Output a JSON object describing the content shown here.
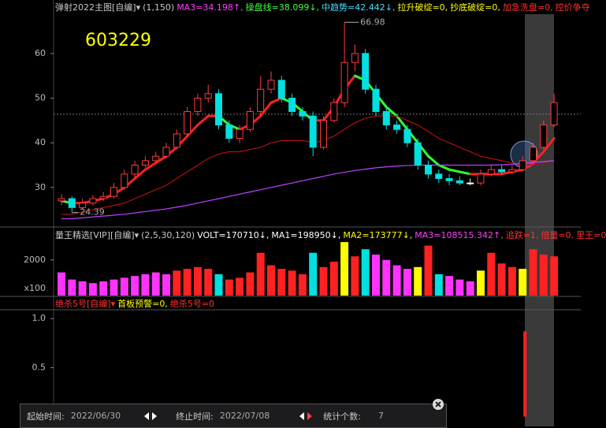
{
  "header": {
    "items": [
      {
        "text": "弹射2022主图[自编]▾",
        "color": "#c8c8c8"
      },
      {
        "text": "(1,150)",
        "color": "#c8c8c8"
      },
      {
        "text": "MA3=34.198↑,",
        "color": "#ff40ff"
      },
      {
        "text": "操盘线=38.099↓,",
        "color": "#40ff40"
      },
      {
        "text": "中趋势=42.442↓,",
        "color": "#40e0ff"
      },
      {
        "text": "拉升破绽=0,",
        "color": "#ffff00"
      },
      {
        "text": "抄底破绽=0,",
        "color": "#ffff00"
      },
      {
        "text": "加急洗盘=0,",
        "color": "#ff3030"
      },
      {
        "text": "控价争夺",
        "color": "#ff3030"
      }
    ]
  },
  "volume_header": {
    "items": [
      {
        "text": "量王精选[VIP][自编]▾",
        "color": "#c8c8c8"
      },
      {
        "text": "(2,5,30,120)",
        "color": "#c8c8c8"
      },
      {
        "text": "VOLT=170710↓,",
        "color": "#ffffff"
      },
      {
        "text": "MA1=198950↓,",
        "color": "#ffffff"
      },
      {
        "text": "MA2=173777↓,",
        "color": "#ffff00"
      },
      {
        "text": "MA3=108515.342↑,",
        "color": "#ff40ff"
      },
      {
        "text": "追跌=1,",
        "color": "#ff3030"
      },
      {
        "text": "倍量=0,",
        "color": "#ff3030"
      },
      {
        "text": "里王=0",
        "color": "#ff3030"
      }
    ]
  },
  "signal_header": {
    "items": [
      {
        "text": "绝杀5号[自编]▾",
        "color": "#ff3030"
      },
      {
        "text": "首板预警=0,",
        "color": "#ffff00"
      },
      {
        "text": "绝杀5号=0",
        "color": "#ff3030"
      }
    ]
  },
  "stats": {
    "start_label": "起始时间:",
    "start": "2022/06/30",
    "end_label": "终止时间:",
    "end": "2022/07/08",
    "count_label": "统计个数:",
    "count": 7
  },
  "chart_data": [
    {
      "type": "candlestick",
      "title": "603229",
      "ylim": [
        21.5,
        68.8
      ],
      "yticks": [
        30,
        40,
        50,
        60
      ],
      "ref_line": 46.4,
      "up_color": "#ff3b3b",
      "down_color": "#00e0e0",
      "open": [
        27,
        27.5,
        25.5,
        26.5,
        27.5,
        28,
        30,
        33,
        35,
        36,
        37,
        39,
        42,
        47,
        50,
        51,
        44,
        41,
        43,
        47,
        52,
        54,
        50,
        47,
        46,
        39,
        45,
        49,
        58,
        60,
        52,
        47,
        44,
        43,
        40,
        35,
        33,
        32,
        31.5,
        31,
        31,
        33,
        34,
        33.5,
        34,
        36,
        39,
        44
      ],
      "close": [
        27.5,
        25.5,
        26.5,
        27.5,
        28,
        30,
        33,
        35,
        36,
        37,
        39,
        42,
        47,
        50,
        51,
        44,
        41,
        43,
        47,
        52,
        54,
        50,
        47,
        46,
        39,
        45,
        49,
        58,
        60,
        52,
        47,
        44,
        43,
        40,
        35,
        33,
        32,
        31.5,
        31,
        31,
        33,
        34,
        33.5,
        34,
        36,
        39,
        44,
        49
      ],
      "high": [
        28.5,
        28,
        27.5,
        28.3,
        29,
        31,
        34,
        36,
        37,
        38,
        40,
        43,
        48,
        51,
        53,
        52,
        45,
        44,
        48,
        55,
        56,
        55,
        51,
        48,
        47,
        46,
        50,
        66.98,
        62,
        61,
        53,
        48,
        45,
        44,
        41,
        36,
        34,
        33,
        32.5,
        32,
        34,
        35,
        35,
        35,
        37,
        40,
        45,
        51
      ],
      "low": [
        26,
        24.39,
        25,
        26,
        27,
        27.5,
        29.5,
        32,
        34.5,
        35.5,
        36.5,
        38.5,
        41.5,
        46,
        49,
        43,
        40,
        40,
        42.5,
        46,
        51,
        49,
        46,
        45,
        37,
        38.5,
        44.5,
        48,
        56,
        51,
        46,
        43,
        42,
        39,
        34,
        32,
        31,
        30.5,
        30.5,
        30.5,
        30.5,
        32.5,
        33,
        33,
        33.5,
        35.5,
        38.5,
        43.5
      ],
      "series": [
        {
          "color": "#ff2020",
          "down_color": "#30ff30",
          "width": 3,
          "values": [
            27,
            26.5,
            26.5,
            27,
            27.5,
            28.5,
            30,
            32,
            34,
            35.5,
            37,
            39,
            41.5,
            44,
            46,
            46,
            44,
            43,
            44,
            46,
            49,
            50,
            49,
            47,
            45,
            45,
            48,
            52,
            55,
            54,
            51,
            48,
            46,
            43,
            40,
            37,
            35,
            34,
            33.5,
            33,
            33,
            33,
            33,
            33.5,
            34,
            35.5,
            38,
            41
          ]
        },
        {
          "color": "#b01010",
          "width": 1.2,
          "values": [
            24,
            24,
            24.5,
            25,
            25.5,
            26,
            26.5,
            27.5,
            28.5,
            29.5,
            30.5,
            32,
            33.5,
            35,
            36.5,
            37.5,
            38,
            38,
            38.5,
            39,
            40,
            40.5,
            40.5,
            40.5,
            40,
            40.5,
            41.5,
            43,
            44.5,
            45.5,
            46,
            46,
            46,
            45,
            44,
            42.5,
            41,
            40,
            39,
            38,
            37,
            36.5,
            36,
            35.5,
            35,
            35,
            35.5,
            36
          ]
        },
        {
          "color": "#c040ff",
          "width": 1.2,
          "values": [
            23,
            23,
            23.2,
            23.4,
            23.6,
            23.8,
            24,
            24.3,
            24.6,
            24.9,
            25.2,
            25.6,
            26,
            26.5,
            27,
            27.5,
            28,
            28.5,
            29,
            29.5,
            30,
            30.5,
            31,
            31.5,
            32,
            32.5,
            33,
            33.4,
            33.8,
            34.1,
            34.4,
            34.6,
            34.8,
            34.9,
            35,
            35,
            35,
            35,
            35,
            35,
            35,
            35,
            35.1,
            35.2,
            35.4,
            35.6,
            35.8,
            36
          ]
        }
      ]
    },
    {
      "type": "bar",
      "ylim": [
        0,
        3050
      ],
      "yticks": [
        2000
      ],
      "unit_label": "x100",
      "values": [
        1300,
        900,
        800,
        700,
        800,
        900,
        1000,
        1100,
        1200,
        1300,
        1200,
        1400,
        1500,
        1600,
        1500,
        1200,
        900,
        1000,
        1300,
        2400,
        1700,
        1500,
        1400,
        1200,
        2400,
        1600,
        1900,
        3000,
        2200,
        2600,
        2300,
        2000,
        1700,
        1500,
        1600,
        2800,
        1200,
        1100,
        900,
        800,
        1400,
        2400,
        1800,
        1600,
        1500,
        2600,
        2300,
        2200
      ],
      "colors": [
        "#ff33ff",
        "#ff33ff",
        "#ff33ff",
        "#ff33ff",
        "#ff33ff",
        "#ff33ff",
        "#ff33ff",
        "#ff33ff",
        "#ff33ff",
        "#ff33ff",
        "#ff33ff",
        "#ff2222",
        "#ff2222",
        "#ff2222",
        "#ff2222",
        "#00e0e0",
        "#ff2222",
        "#ff2222",
        "#ff2222",
        "#ff2222",
        "#ff2222",
        "#ff2222",
        "#ff2222",
        "#ff2222",
        "#00e0e0",
        "#ff2222",
        "#ff2222",
        "#ffff00",
        "#ff2222",
        "#00e0e0",
        "#ff33ff",
        "#ff33ff",
        "#ff33ff",
        "#ff33ff",
        "#ffff00",
        "#ff2222",
        "#00e0e0",
        "#ff33ff",
        "#ff33ff",
        "#ff33ff",
        "#ffff00",
        "#ff2222",
        "#ff2222",
        "#ff2222",
        "#ffff00",
        "#ff2222",
        "#ff2222",
        "#ff2222"
      ]
    },
    {
      "type": "signal",
      "ylim": [
        -0.1,
        1.09
      ],
      "yticks": [
        {
          "value": 1,
          "label": "1.0"
        },
        0.5
      ],
      "values": [
        0,
        0,
        0,
        0,
        0,
        0,
        0,
        0,
        0,
        0,
        0,
        0,
        0,
        0,
        0,
        0,
        0,
        0,
        0,
        0,
        0,
        0,
        0,
        0,
        0,
        0,
        0,
        0,
        0,
        0,
        0,
        0,
        0,
        0,
        0,
        0,
        0,
        0,
        0,
        0,
        0,
        0,
        0,
        0,
        0.87,
        0,
        0,
        0
      ],
      "color": "#ff2020"
    }
  ]
}
